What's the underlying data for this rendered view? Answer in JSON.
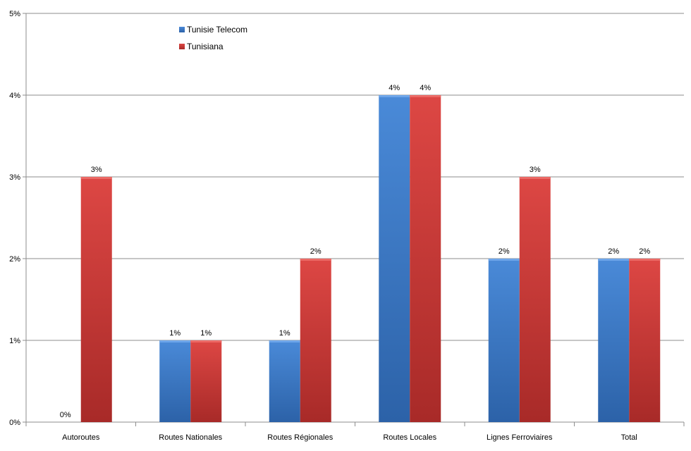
{
  "chart_data": {
    "type": "bar",
    "categories": [
      "Autoroutes",
      "Routes Nationales",
      "Routes Régionales",
      "Routes Locales",
      "Lignes Ferroviaires",
      "Total"
    ],
    "series": [
      {
        "name": "Tunisie Telecom",
        "values": [
          0,
          1,
          1,
          4,
          2,
          2
        ],
        "labels": [
          "0%",
          "1%",
          "1%",
          "4%",
          "2%",
          "2%"
        ],
        "color": "#3b7bc8"
      },
      {
        "name": "Tunisiana",
        "values": [
          3,
          1,
          2,
          4,
          3,
          2
        ],
        "labels": [
          "3%",
          "1%",
          "2%",
          "4%",
          "3%",
          "2%"
        ],
        "color": "#c93a38"
      }
    ],
    "yticks": [
      0,
      1,
      2,
      3,
      4,
      5
    ],
    "ytick_labels": [
      "0%",
      "1%",
      "2%",
      "3%",
      "4%",
      "5%"
    ],
    "ylim": [
      0,
      5
    ],
    "grid": true,
    "legend_position": "top-left"
  }
}
